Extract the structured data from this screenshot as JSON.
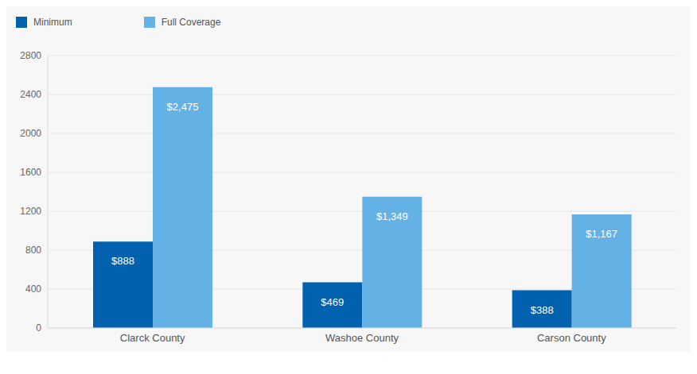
{
  "chart_data": {
    "type": "bar",
    "categories": [
      "Clarck County",
      "Washoe County",
      "Carson County"
    ],
    "series": [
      {
        "name": "Minimum",
        "color": "#0061ae",
        "values": [
          888,
          469,
          388
        ],
        "value_labels": [
          "$888",
          "$469",
          "$388"
        ]
      },
      {
        "name": "Full Coverage",
        "color": "#63b1e5",
        "values": [
          2475,
          1349,
          1167
        ],
        "value_labels": [
          "$2,475",
          "$1,349",
          "$1,167"
        ]
      }
    ],
    "ylim": [
      0,
      2800
    ],
    "yticks": [
      0,
      400,
      800,
      1200,
      1600,
      2000,
      2400,
      2800
    ],
    "grid": true,
    "legend": "top-left",
    "data_labels": true
  }
}
